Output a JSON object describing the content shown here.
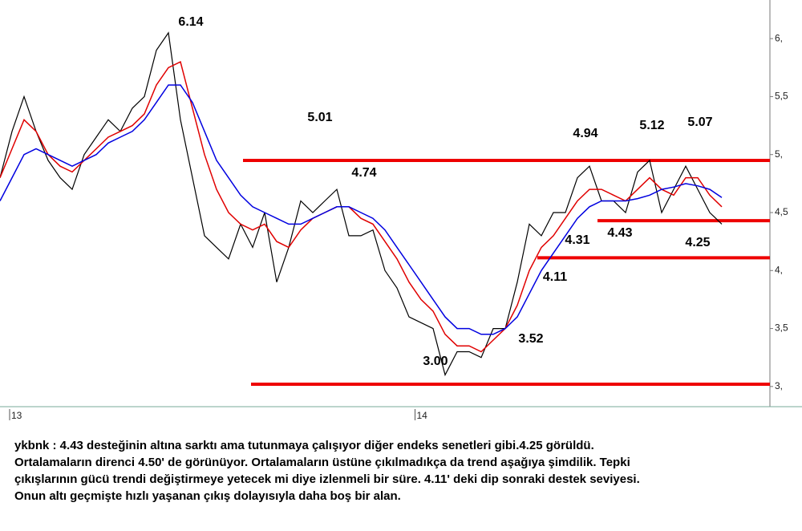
{
  "chart_data": {
    "type": "line",
    "xlim": [
      0,
      64
    ],
    "ylim": [
      2.826,
      6.333
    ],
    "xticks": [
      {
        "value": 0.8,
        "label": "13"
      },
      {
        "value": 34.5,
        "label": "14"
      }
    ],
    "yticks": [
      {
        "value": 6,
        "label": "6,"
      },
      {
        "value": 5.5,
        "label": "5,5"
      },
      {
        "value": 5,
        "label": "5,"
      },
      {
        "value": 4.5,
        "label": "4,5"
      },
      {
        "value": 4,
        "label": "4,"
      },
      {
        "value": 3.5,
        "label": "3,5"
      },
      {
        "value": 3,
        "label": "3,"
      }
    ],
    "x": [
      0,
      1,
      2,
      3,
      4,
      5,
      6,
      7,
      8,
      9,
      10,
      11,
      12,
      13,
      14,
      15,
      16,
      17,
      18,
      19,
      20,
      21,
      22,
      23,
      24,
      25,
      26,
      27,
      28,
      29,
      30,
      31,
      32,
      33,
      34,
      35,
      36,
      37,
      38,
      39,
      40,
      41,
      42,
      43,
      44,
      45,
      46,
      47,
      48,
      49,
      50,
      51,
      52,
      53,
      54,
      55,
      56,
      57,
      58,
      59,
      60
    ],
    "series": [
      {
        "color": "#000000",
        "values": [
          4.8,
          5.2,
          5.5,
          5.2,
          4.95,
          4.8,
          4.7,
          5.0,
          5.15,
          5.3,
          5.2,
          5.4,
          5.5,
          5.9,
          6.05,
          5.3,
          4.8,
          4.3,
          4.2,
          4.1,
          4.4,
          4.2,
          4.5,
          3.9,
          4.2,
          4.6,
          4.5,
          4.6,
          4.7,
          4.3,
          4.3,
          4.35,
          4.0,
          3.85,
          3.6,
          3.55,
          3.5,
          3.1,
          3.3,
          3.3,
          3.25,
          3.5,
          3.5,
          3.9,
          4.4,
          4.3,
          4.5,
          4.5,
          4.8,
          4.9,
          4.6,
          4.6,
          4.5,
          4.85,
          4.95,
          4.5,
          4.7,
          4.9,
          4.7,
          4.5,
          4.4
        ]
      },
      {
        "color": "#e00000",
        "values": [
          4.8,
          5.05,
          5.3,
          5.2,
          5.0,
          4.9,
          4.85,
          4.95,
          5.05,
          5.15,
          5.2,
          5.25,
          5.35,
          5.6,
          5.75,
          5.8,
          5.4,
          5.0,
          4.7,
          4.5,
          4.4,
          4.35,
          4.4,
          4.25,
          4.2,
          4.35,
          4.45,
          4.5,
          4.55,
          4.55,
          4.45,
          4.4,
          4.25,
          4.1,
          3.9,
          3.75,
          3.65,
          3.45,
          3.35,
          3.35,
          3.3,
          3.4,
          3.5,
          3.7,
          4.0,
          4.2,
          4.3,
          4.45,
          4.6,
          4.7,
          4.7,
          4.65,
          4.6,
          4.7,
          4.8,
          4.7,
          4.65,
          4.8,
          4.8,
          4.65,
          4.55
        ]
      },
      {
        "color": "#0000e0",
        "values": [
          4.6,
          4.8,
          5.0,
          5.05,
          5.0,
          4.95,
          4.9,
          4.95,
          5.0,
          5.1,
          5.15,
          5.2,
          5.3,
          5.45,
          5.6,
          5.6,
          5.45,
          5.2,
          4.95,
          4.8,
          4.65,
          4.55,
          4.5,
          4.45,
          4.4,
          4.4,
          4.45,
          4.5,
          4.55,
          4.55,
          4.5,
          4.45,
          4.35,
          4.2,
          4.05,
          3.9,
          3.75,
          3.6,
          3.5,
          3.5,
          3.45,
          3.45,
          3.5,
          3.6,
          3.8,
          4.0,
          4.15,
          4.3,
          4.45,
          4.55,
          4.6,
          4.6,
          4.6,
          4.62,
          4.65,
          4.7,
          4.72,
          4.75,
          4.73,
          4.7,
          4.63
        ]
      }
    ],
    "reference_lines": [
      {
        "value": 4.95,
        "color": "#ee0000"
      },
      {
        "value": 4.43,
        "color": "#ee0000"
      },
      {
        "value": 4.11,
        "color": "#ee0000"
      },
      {
        "value": 3.02,
        "color": "#ee0000"
      }
    ],
    "annotations": [
      "6.14",
      "5.01",
      "4.74",
      "3.00",
      "3.52",
      "4.11",
      "4.31",
      "4.43",
      "4.25",
      "4.94",
      "5.12",
      "5.07"
    ],
    "caption": [
      "ykbnk : 4.43 desteğinin altına sarktı ama tutunmaya çalışıyor diğer endeks senetleri gibi.4.25 görüldü.",
      "Ortalamaların direnci 4.50' de görünüyor. Ortalamaların üstüne çıkılmadıkça da trend aşağıya şimdilik. Tepki",
      "çıkışlarının gücü trendi değiştirmeye yetecek mi diye izlenmeli bir süre.  4.11' deki dip sonraki destek seviyesi.",
      "Onun altı geçmişte hızlı yaşanan çıkış dolayısıyla daha boş bir alan."
    ]
  }
}
